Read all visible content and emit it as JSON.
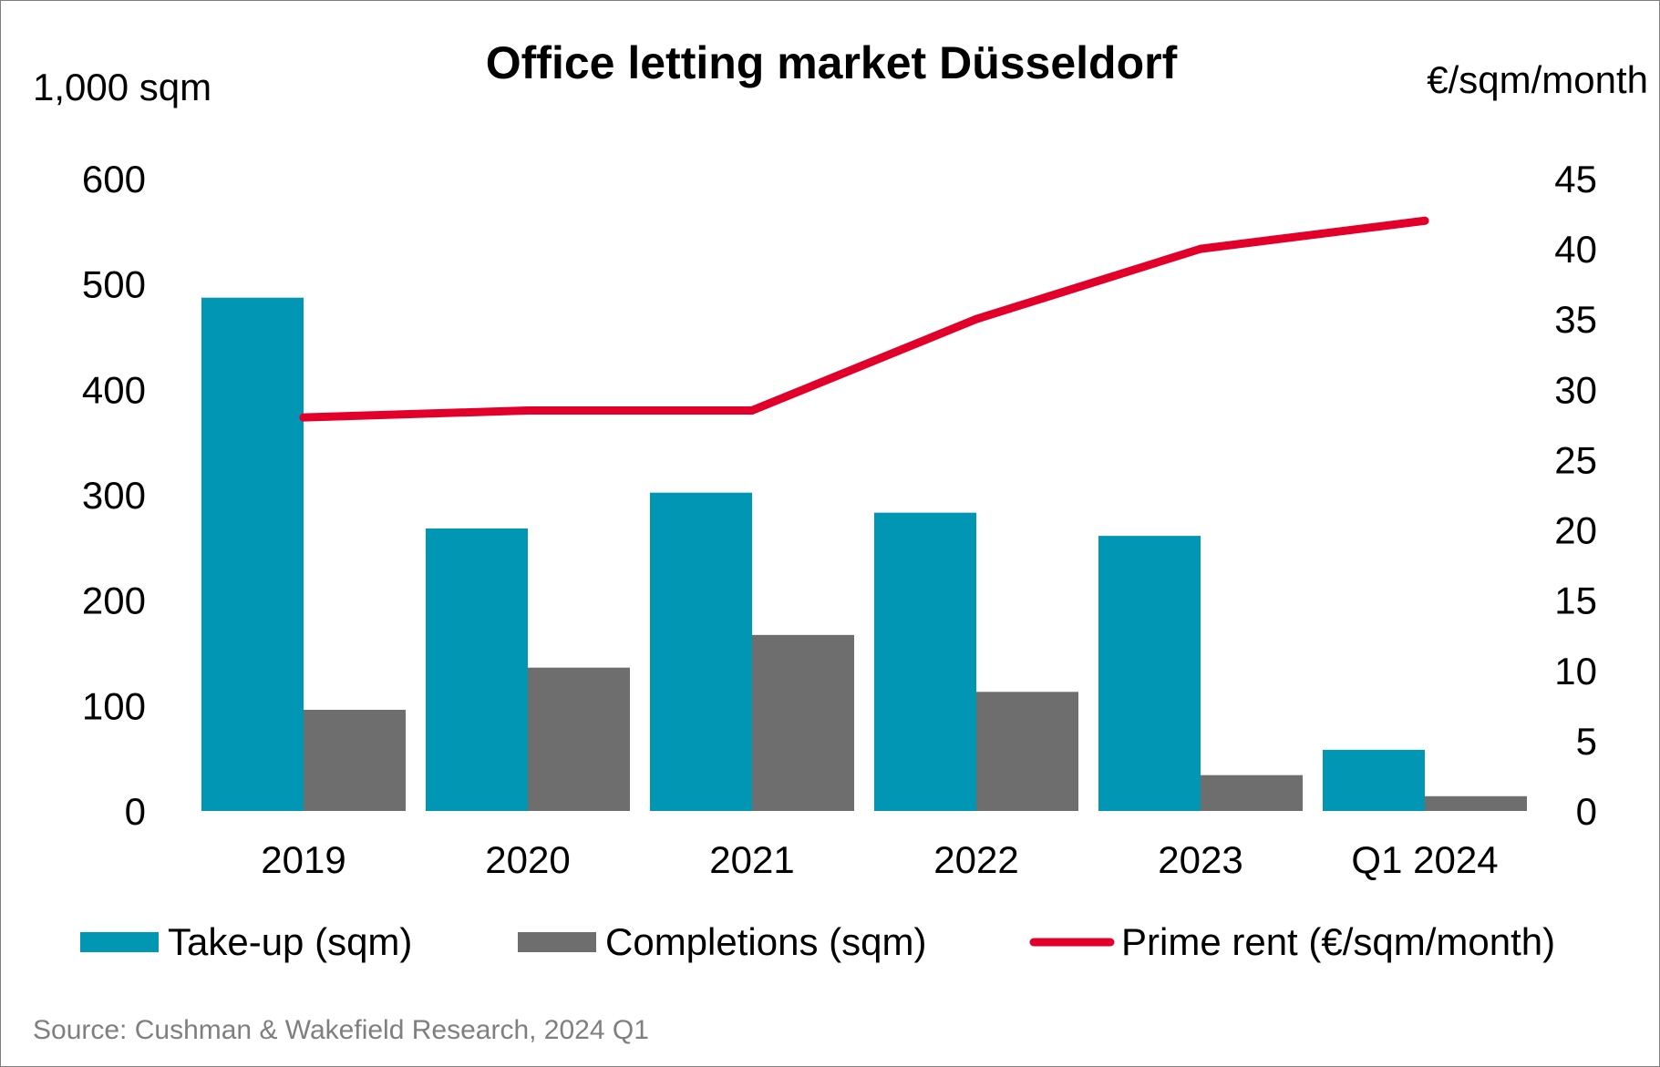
{
  "chart_data": {
    "type": "bar",
    "title": "Office letting market Düsseldorf",
    "left_axis_unit": "1,000 sqm",
    "right_axis_unit": "€/sqm/month",
    "categories": [
      "2019",
      "2020",
      "2021",
      "2022",
      "2023",
      "Q1 2024"
    ],
    "y_left": {
      "min": 0,
      "max": 600,
      "ticks": [
        "0",
        "100",
        "200",
        "300",
        "400",
        "500",
        "600"
      ]
    },
    "y_right": {
      "min": 0,
      "max": 45,
      "ticks": [
        "0",
        "5",
        "10",
        "15",
        "20",
        "25",
        "30",
        "35",
        "40",
        "45"
      ]
    },
    "series": [
      {
        "name": "Take-up (sqm)",
        "type": "bar",
        "axis": "left",
        "color": "#0096b4",
        "values": [
          487,
          268,
          302,
          283,
          261,
          58
        ]
      },
      {
        "name": "Completions (sqm)",
        "type": "bar",
        "axis": "left",
        "color": "#6d6e6d",
        "values": [
          96,
          136,
          167,
          113,
          34,
          14
        ]
      },
      {
        "name": "Prime rent (€/sqm/month)",
        "type": "line",
        "axis": "right",
        "color": "#e2002a",
        "values": [
          28,
          28.5,
          28.5,
          35,
          40,
          42
        ]
      }
    ],
    "grid": false,
    "legend_position": "bottom",
    "source": "Source: Cushman & Wakefield Research, 2024 Q1"
  }
}
